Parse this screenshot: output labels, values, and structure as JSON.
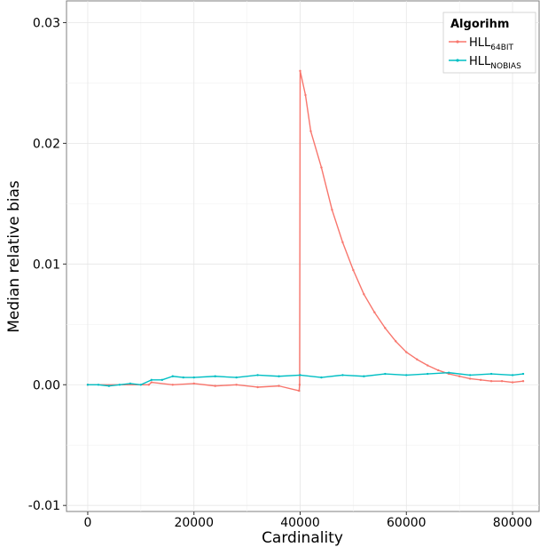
{
  "chart_data": {
    "type": "line",
    "xlabel": "Cardinality",
    "ylabel": "Median relative bias",
    "xlim": [
      -4000,
      85000
    ],
    "ylim": [
      -0.0105,
      0.0318
    ],
    "x_ticks": [
      0,
      20000,
      40000,
      60000,
      80000
    ],
    "x_tick_labels": [
      "0",
      "20000",
      "40000",
      "60000",
      "80000"
    ],
    "y_ticks": [
      -0.01,
      0.0,
      0.01,
      0.02,
      0.03
    ],
    "y_tick_labels": [
      "-0.01",
      "0.00",
      "0.01",
      "0.02",
      "0.03"
    ],
    "grid": true,
    "legend": {
      "position": "top-right",
      "title": "Algorihm",
      "entries": [
        {
          "base": "HLL",
          "sub": "64BIT",
          "color": "#F8766D"
        },
        {
          "base": "HLL",
          "sub": "NOBIAS",
          "color": "#00BFC4"
        }
      ]
    },
    "series": [
      {
        "color": "#F8766D",
        "x": [
          0,
          11500,
          12000,
          16000,
          20000,
          24000,
          28000,
          32000,
          36000,
          39800,
          39900,
          40000,
          41000,
          42000,
          44000,
          46000,
          48000,
          50000,
          52000,
          54000,
          56000,
          58000,
          60000,
          62000,
          64000,
          66000,
          68000,
          70000,
          72000,
          74000,
          76000,
          78000,
          80000,
          82000
        ],
        "y": [
          0.0,
          0.0,
          0.0002,
          0.0,
          0.0001,
          -0.0001,
          0.0,
          -0.0002,
          -0.0001,
          -0.0005,
          0.0,
          0.026,
          0.024,
          0.021,
          0.018,
          0.0145,
          0.0118,
          0.0095,
          0.0075,
          0.006,
          0.0047,
          0.0036,
          0.0027,
          0.0021,
          0.0016,
          0.0012,
          0.0009,
          0.0007,
          0.0005,
          0.0004,
          0.0003,
          0.0003,
          0.0002,
          0.0003
        ]
      },
      {
        "color": "#00BFC4",
        "x": [
          0,
          2000,
          4000,
          6000,
          8000,
          10000,
          12000,
          14000,
          16000,
          18000,
          20000,
          24000,
          28000,
          32000,
          36000,
          40000,
          44000,
          48000,
          52000,
          56000,
          60000,
          64000,
          68000,
          72000,
          76000,
          80000,
          82000
        ],
        "y": [
          0.0,
          0.0,
          -0.0001,
          0.0,
          0.0001,
          0.0,
          0.0004,
          0.0004,
          0.0007,
          0.0006,
          0.0006,
          0.0007,
          0.0006,
          0.0008,
          0.0007,
          0.0008,
          0.0006,
          0.0008,
          0.0007,
          0.0009,
          0.0008,
          0.0009,
          0.001,
          0.0008,
          0.0009,
          0.0008,
          0.0009
        ]
      }
    ]
  }
}
